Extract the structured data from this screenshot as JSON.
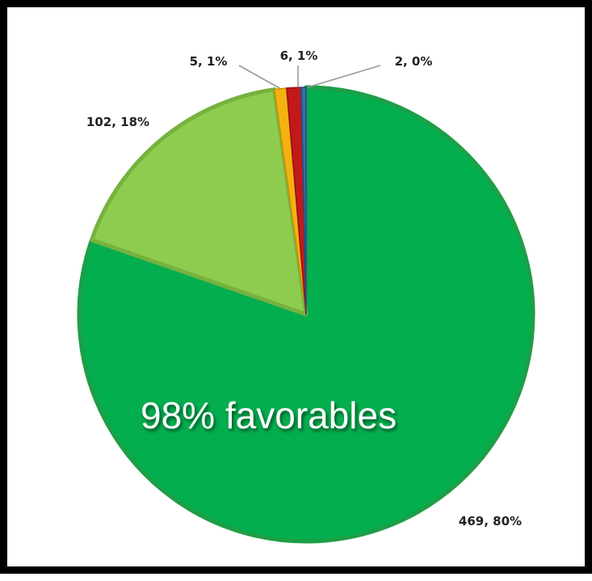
{
  "chart_data": {
    "type": "pie",
    "start_angle_deg": 0,
    "direction": "clockwise",
    "slices": [
      {
        "label": "469, 80%",
        "value": 469,
        "percent": 80,
        "color": "#03AE4E",
        "edge": "#1E9E46"
      },
      {
        "label": "102, 18%",
        "value": 102,
        "percent": 18,
        "color": "#8DCC4E",
        "edge": "#76B23E"
      },
      {
        "label": "5, 1%",
        "value": 5,
        "percent": 1,
        "color": "#F3B211",
        "edge": "#D09000"
      },
      {
        "label": "6, 1%",
        "value": 6,
        "percent": 1,
        "color": "#C2191B",
        "edge": "#951012"
      },
      {
        "label": "2, 0%",
        "value": 2,
        "percent": 0,
        "color": "#2F6EB0",
        "edge": "#1F4F85"
      }
    ],
    "annotation": "98% favorables",
    "legend": "none",
    "title": ""
  }
}
